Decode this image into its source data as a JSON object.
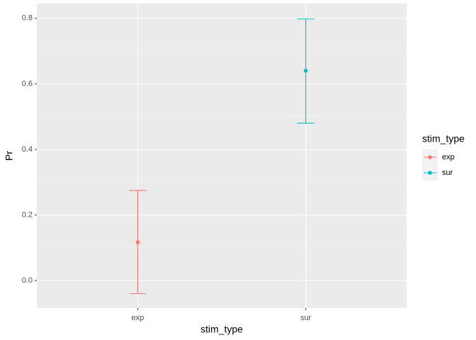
{
  "chart_data": {
    "type": "errorbar",
    "x_label": "stim_type",
    "y_label": "Pr",
    "legend_title": "stim_type",
    "categories": [
      "exp",
      "sur"
    ],
    "series": [
      {
        "name": "exp",
        "color": "#F8766D",
        "values": [
          0.117,
          null
        ],
        "lower": [
          -0.04,
          null
        ],
        "upper": [
          0.275,
          null
        ]
      },
      {
        "name": "sur",
        "color": "#00BFC4",
        "values": [
          null,
          0.64
        ],
        "lower": [
          null,
          0.48
        ],
        "upper": [
          null,
          0.798
        ]
      }
    ],
    "ylim": [
      -0.084,
      0.845
    ],
    "yticks": [
      {
        "value": 0,
        "label": "0.0"
      },
      0.2,
      0.4,
      0.6,
      0.8
    ],
    "grid": true
  }
}
